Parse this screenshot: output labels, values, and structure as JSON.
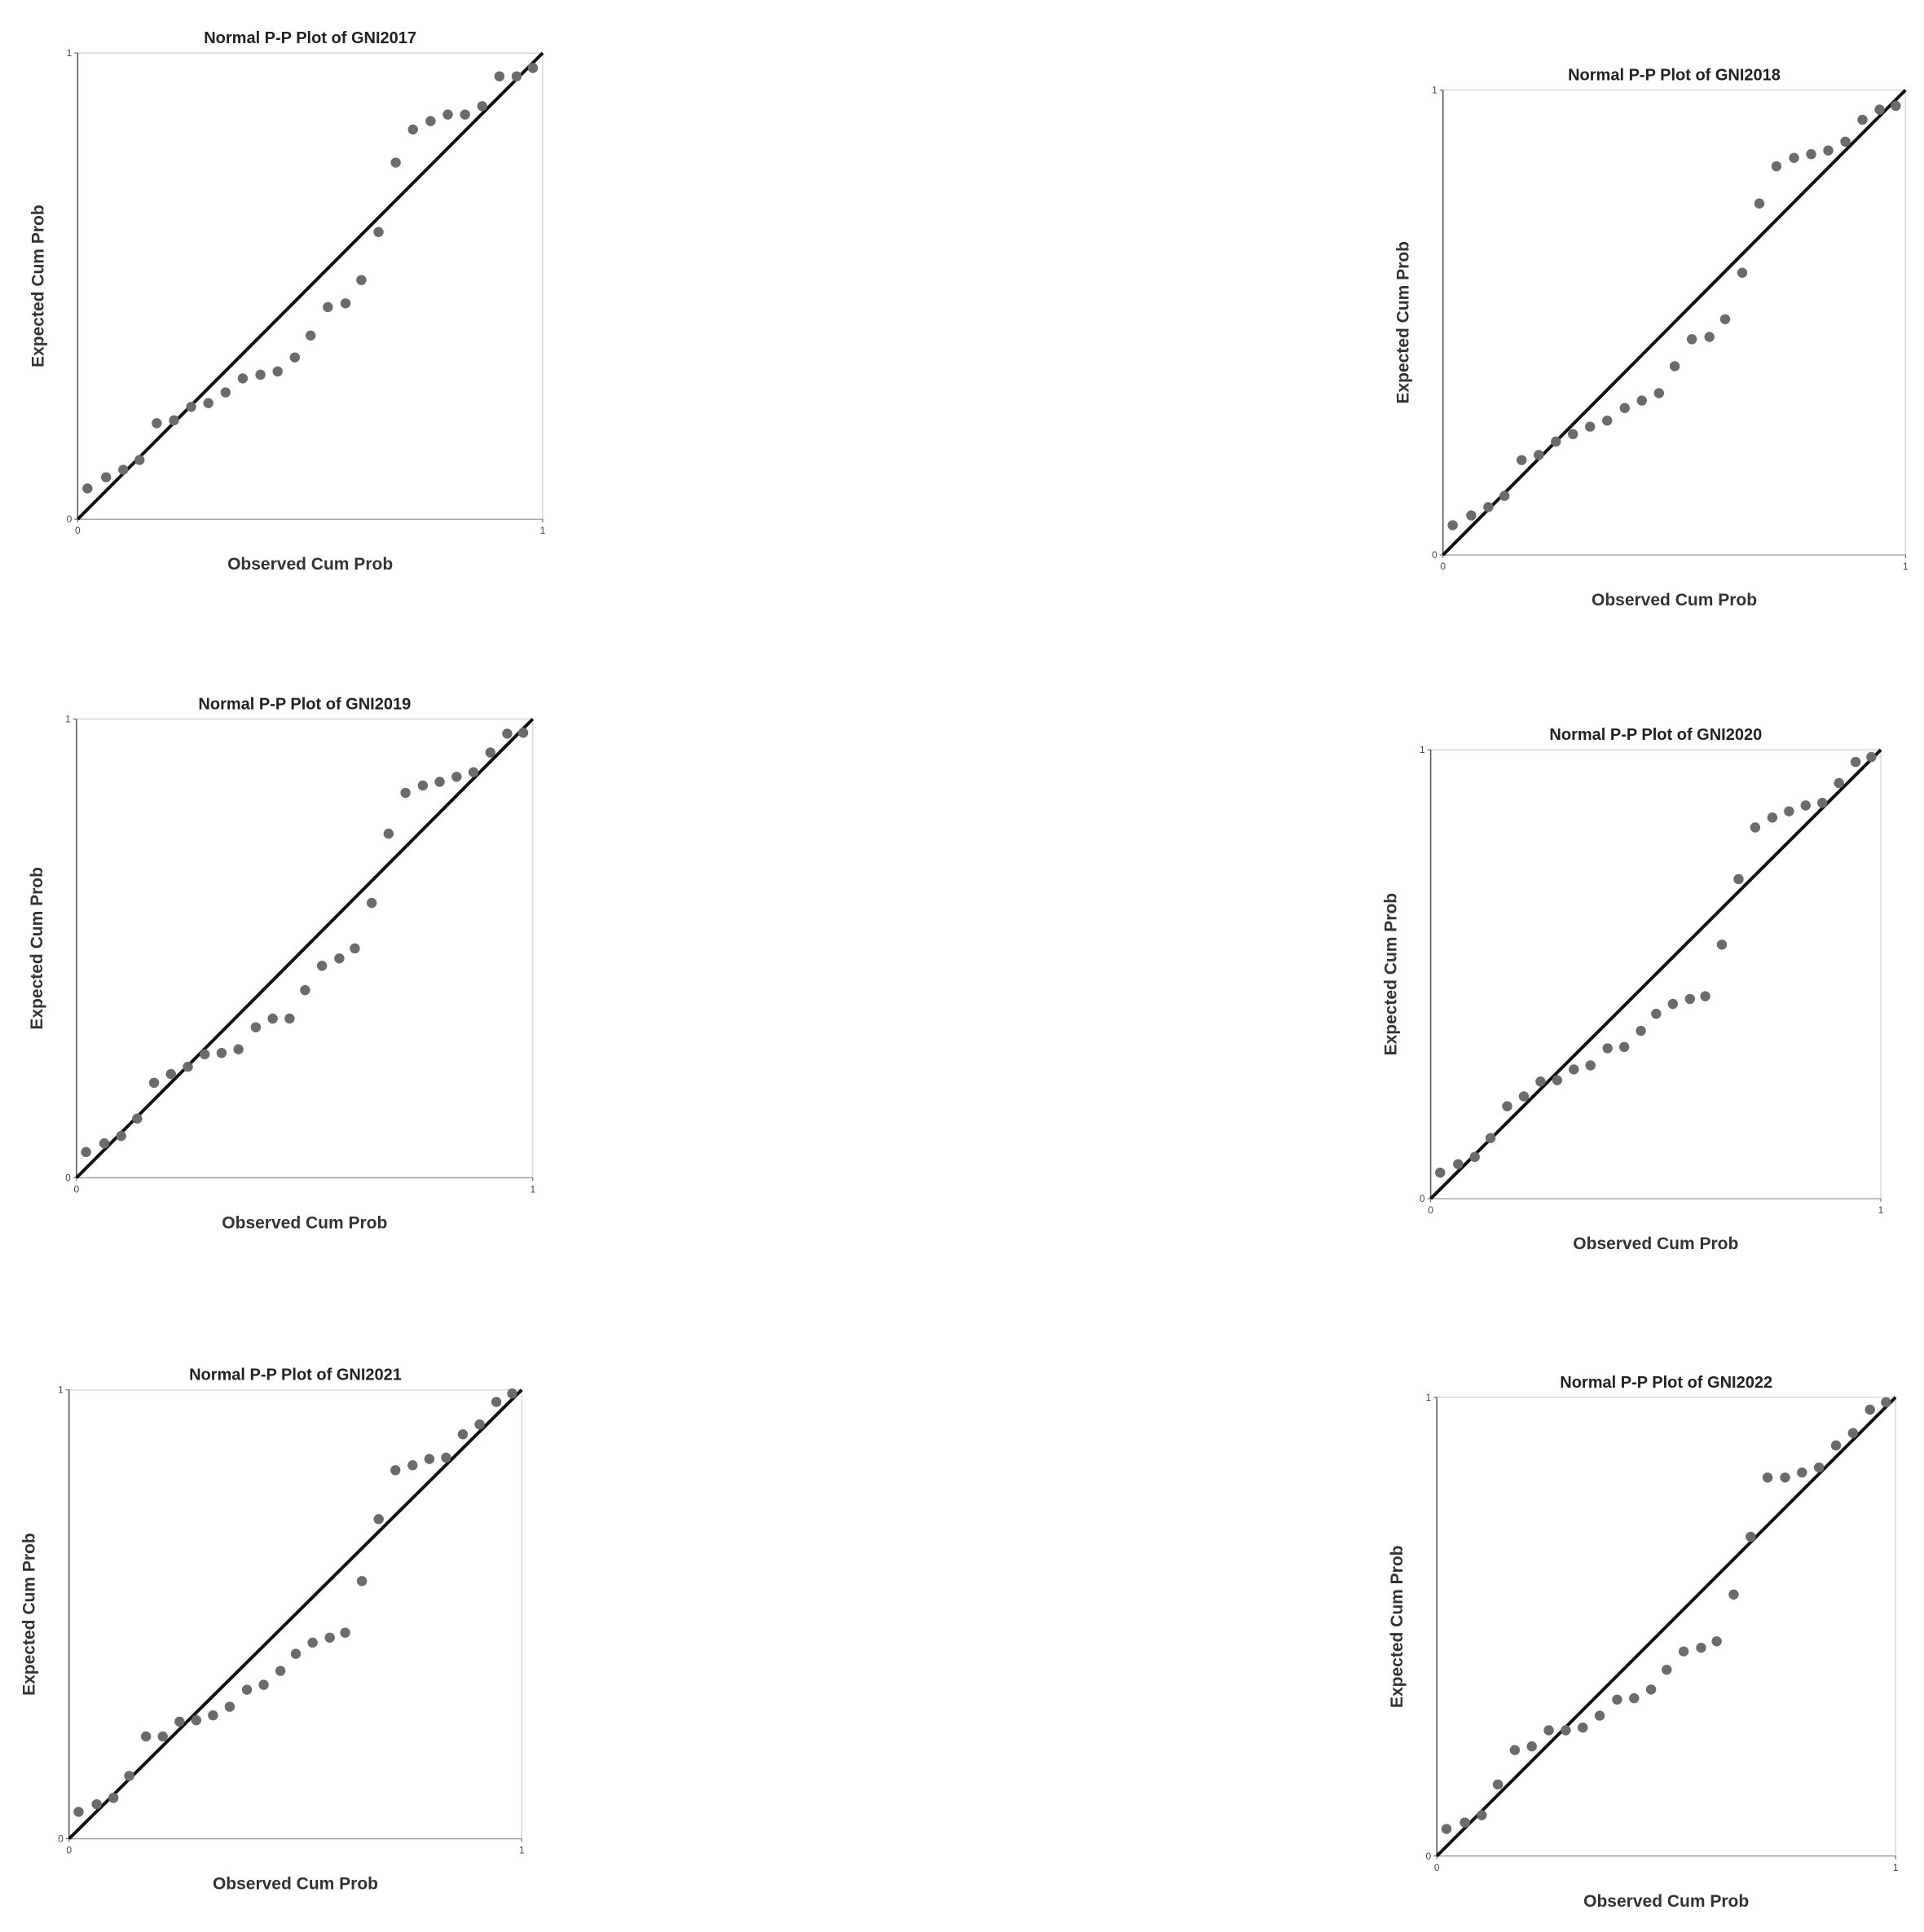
{
  "chart_data": [
    {
      "type": "scatter",
      "title": "Normal P-P Plot of GNI2017",
      "x_label": "Observed Cum Prob",
      "y_label": "Expected Cum Prob",
      "color": "#6b6b6b",
      "xlim": [
        0,
        1
      ],
      "ylim": [
        0,
        1
      ],
      "xticks": [
        0,
        1
      ],
      "yticks": [
        0,
        1
      ],
      "x": [
        0.021,
        0.061,
        0.098,
        0.133,
        0.17,
        0.207,
        0.244,
        0.281,
        0.318,
        0.355,
        0.393,
        0.43,
        0.467,
        0.501,
        0.538,
        0.576,
        0.61,
        0.647,
        0.684,
        0.721,
        0.759,
        0.796,
        0.833,
        0.87,
        0.907,
        0.944,
        0.979
      ],
      "values": [
        0.066,
        0.09,
        0.106,
        0.127,
        0.206,
        0.212,
        0.241,
        0.249,
        0.272,
        0.302,
        0.31,
        0.317,
        0.347,
        0.394,
        0.455,
        0.463,
        0.513,
        0.616,
        0.765,
        0.836,
        0.854,
        0.868,
        0.868,
        0.886,
        0.95,
        0.95,
        0.968
      ]
    },
    {
      "type": "scatter",
      "title": "Normal P-P Plot of GNI2018",
      "x_label": "Observed Cum Prob",
      "y_label": "Expected Cum Prob",
      "color": "#6b6b6b",
      "xlim": [
        0,
        1
      ],
      "ylim": [
        0,
        1
      ],
      "xticks": [
        0,
        1
      ],
      "yticks": [
        0,
        1
      ],
      "x": [
        0.021,
        0.061,
        0.098,
        0.133,
        0.17,
        0.207,
        0.244,
        0.281,
        0.318,
        0.355,
        0.393,
        0.43,
        0.467,
        0.501,
        0.538,
        0.576,
        0.61,
        0.647,
        0.684,
        0.721,
        0.759,
        0.796,
        0.833,
        0.87,
        0.907,
        0.944,
        0.979
      ],
      "values": [
        0.064,
        0.085,
        0.103,
        0.127,
        0.204,
        0.215,
        0.244,
        0.26,
        0.276,
        0.289,
        0.316,
        0.332,
        0.348,
        0.406,
        0.464,
        0.469,
        0.507,
        0.607,
        0.756,
        0.836,
        0.854,
        0.862,
        0.87,
        0.889,
        0.936,
        0.958,
        0.966
      ]
    },
    {
      "type": "scatter",
      "title": "Normal P-P Plot of GNI2019",
      "x_label": "Observed Cum Prob",
      "y_label": "Expected Cum Prob",
      "color": "#6b6b6b",
      "xlim": [
        0,
        1
      ],
      "ylim": [
        0,
        1
      ],
      "xticks": [
        0,
        1
      ],
      "yticks": [
        0,
        1
      ],
      "x": [
        0.021,
        0.061,
        0.098,
        0.133,
        0.17,
        0.207,
        0.244,
        0.281,
        0.318,
        0.355,
        0.393,
        0.43,
        0.467,
        0.501,
        0.538,
        0.576,
        0.61,
        0.647,
        0.684,
        0.721,
        0.759,
        0.796,
        0.833,
        0.87,
        0.907,
        0.944,
        0.979
      ],
      "values": [
        0.056,
        0.075,
        0.091,
        0.129,
        0.207,
        0.226,
        0.242,
        0.269,
        0.272,
        0.28,
        0.328,
        0.347,
        0.347,
        0.409,
        0.462,
        0.478,
        0.5,
        0.599,
        0.75,
        0.839,
        0.855,
        0.863,
        0.874,
        0.884,
        0.927,
        0.968,
        0.97
      ]
    },
    {
      "type": "scatter",
      "title": "Normal P-P Plot of GNI2020",
      "x_label": "Observed Cum Prob",
      "y_label": "Expected Cum Prob",
      "color": "#6b6b6b",
      "xlim": [
        0,
        1
      ],
      "ylim": [
        0,
        1
      ],
      "xticks": [
        0,
        1
      ],
      "yticks": [
        0,
        1
      ],
      "x": [
        0.021,
        0.061,
        0.098,
        0.133,
        0.17,
        0.207,
        0.244,
        0.281,
        0.318,
        0.355,
        0.393,
        0.43,
        0.467,
        0.501,
        0.538,
        0.576,
        0.61,
        0.647,
        0.684,
        0.721,
        0.759,
        0.796,
        0.833,
        0.87,
        0.907,
        0.944,
        0.979
      ],
      "values": [
        0.058,
        0.077,
        0.093,
        0.135,
        0.206,
        0.228,
        0.261,
        0.264,
        0.288,
        0.297,
        0.335,
        0.338,
        0.374,
        0.412,
        0.434,
        0.445,
        0.451,
        0.566,
        0.712,
        0.827,
        0.849,
        0.863,
        0.876,
        0.882,
        0.926,
        0.973,
        0.984
      ]
    },
    {
      "type": "scatter",
      "title": "Normal P-P Plot of GNI2021",
      "x_label": "Observed Cum Prob",
      "y_label": "Expected Cum Prob",
      "color": "#6b6b6b",
      "xlim": [
        0,
        1
      ],
      "ylim": [
        0,
        1
      ],
      "xticks": [
        0,
        1
      ],
      "yticks": [
        0,
        1
      ],
      "x": [
        0.021,
        0.061,
        0.098,
        0.133,
        0.17,
        0.207,
        0.244,
        0.281,
        0.318,
        0.355,
        0.393,
        0.43,
        0.467,
        0.501,
        0.538,
        0.576,
        0.61,
        0.647,
        0.684,
        0.721,
        0.759,
        0.796,
        0.833,
        0.87,
        0.907,
        0.944,
        0.979
      ],
      "values": [
        0.06,
        0.077,
        0.091,
        0.14,
        0.228,
        0.228,
        0.261,
        0.264,
        0.275,
        0.294,
        0.332,
        0.343,
        0.374,
        0.412,
        0.437,
        0.448,
        0.459,
        0.574,
        0.712,
        0.821,
        0.832,
        0.846,
        0.849,
        0.901,
        0.923,
        0.973,
        0.992
      ]
    },
    {
      "type": "scatter",
      "title": "Normal P-P Plot of GNI2022",
      "x_label": "Observed Cum Prob",
      "y_label": "Expected Cum Prob",
      "color": "#6b6b6b",
      "xlim": [
        0,
        1
      ],
      "ylim": [
        0,
        1
      ],
      "xticks": [
        0,
        1
      ],
      "yticks": [
        0,
        1
      ],
      "x": [
        0.021,
        0.061,
        0.098,
        0.133,
        0.17,
        0.207,
        0.244,
        0.281,
        0.318,
        0.355,
        0.393,
        0.43,
        0.467,
        0.501,
        0.538,
        0.576,
        0.61,
        0.647,
        0.684,
        0.721,
        0.759,
        0.796,
        0.833,
        0.87,
        0.907,
        0.944,
        0.979
      ],
      "values": [
        0.059,
        0.073,
        0.089,
        0.156,
        0.231,
        0.239,
        0.274,
        0.274,
        0.28,
        0.306,
        0.341,
        0.344,
        0.363,
        0.406,
        0.446,
        0.454,
        0.468,
        0.57,
        0.696,
        0.825,
        0.825,
        0.836,
        0.847,
        0.895,
        0.922,
        0.973,
        0.989
      ]
    }
  ]
}
